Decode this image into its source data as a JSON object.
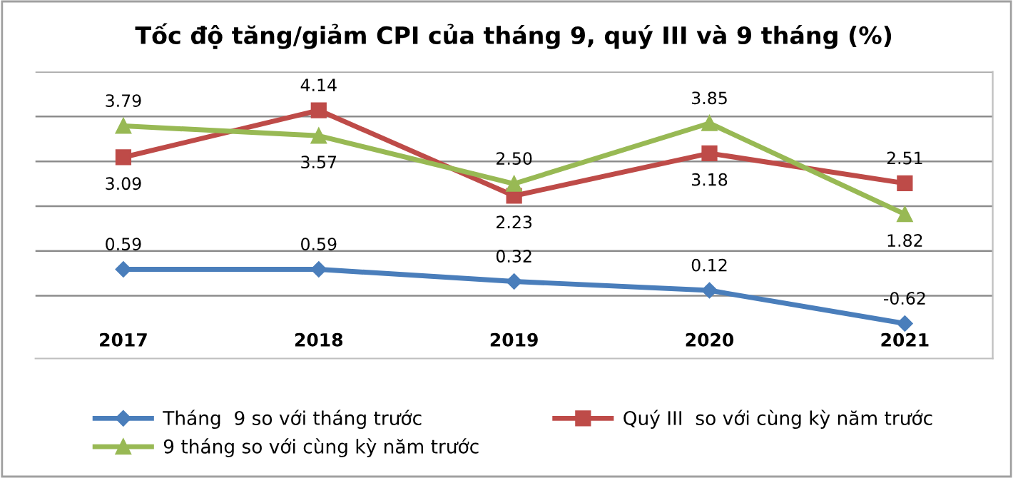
{
  "chart_data": {
    "type": "line",
    "title": "Tốc độ tăng/giảm CPI của tháng 9, quý III và 9 tháng (%)",
    "categories": [
      "2017",
      "2018",
      "2019",
      "2020",
      "2021"
    ],
    "series": [
      {
        "name": "Tháng  9 so với tháng trước",
        "color": "#4a7ebb",
        "values": [
          0.59,
          0.59,
          0.32,
          0.12,
          -0.62
        ],
        "marker": "diamond",
        "value_labels": [
          "0.59",
          "0.59",
          "0.32",
          "0.12",
          "-0.62"
        ]
      },
      {
        "name": "Quý III  so với cùng kỳ năm trước",
        "color": "#be4b48",
        "values": [
          3.09,
          4.14,
          2.23,
          3.18,
          2.51
        ],
        "marker": "square",
        "value_labels": [
          "3.09",
          "4.14",
          "2.23",
          "3.18",
          "2.51"
        ]
      },
      {
        "name": "9 tháng so với cùng kỳ năm trước",
        "color": "#98b954",
        "values": [
          3.79,
          3.57,
          2.5,
          3.85,
          1.82
        ],
        "marker": "triangle",
        "value_labels": [
          "3.79",
          "3.57",
          "2.50",
          "3.85",
          "1.82"
        ]
      }
    ],
    "ylim": [
      -1.4,
      5
    ],
    "yticks": [
      {
        "value": 0,
        "label": null
      },
      {
        "value": 1,
        "label": null
      },
      {
        "value": 2,
        "label": null
      },
      {
        "value": 3,
        "label": null
      },
      {
        "value": 4,
        "label": null
      },
      {
        "value": 5,
        "label": null
      }
    ],
    "grid": "y",
    "legend": "bottom",
    "data_labels": true,
    "tick_labels": "x",
    "line_style": "solid"
  }
}
